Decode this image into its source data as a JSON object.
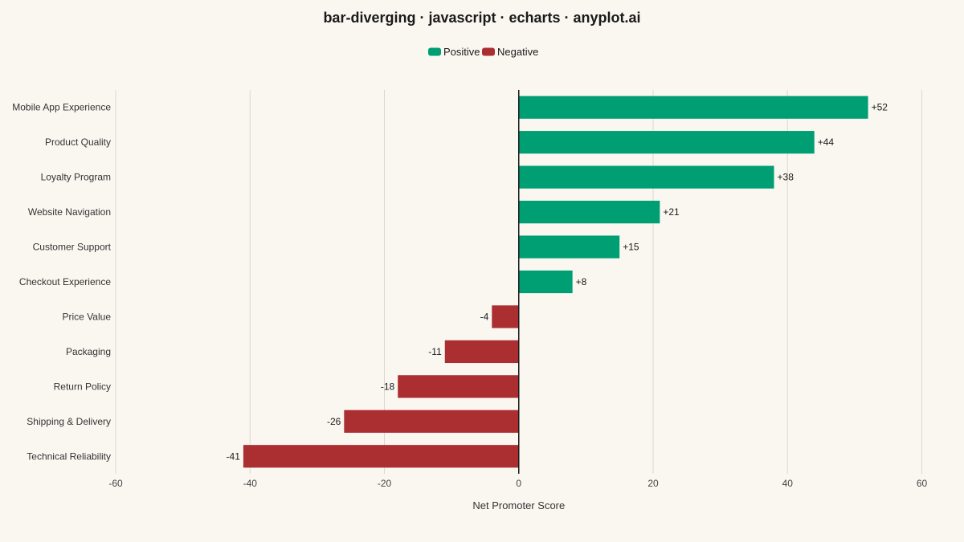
{
  "chart_data": {
    "type": "bar",
    "orientation": "horizontal",
    "title": "bar-diverging · javascript · echarts · anyplot.ai",
    "xlabel": "Net Promoter Score",
    "ylabel": "",
    "xlim": [
      -60,
      60
    ],
    "x_ticks": [
      "-60",
      "-40",
      "-20",
      "0",
      "20",
      "40",
      "60"
    ],
    "grid": true,
    "legend_position": "top-center",
    "legend": [
      {
        "name": "Positive",
        "color": "#009e73"
      },
      {
        "name": "Negative",
        "color": "#ab2e31"
      }
    ],
    "categories": [
      "Mobile App Experience",
      "Product Quality",
      "Loyalty Program",
      "Website Navigation",
      "Customer Support",
      "Checkout Experience",
      "Price Value",
      "Packaging",
      "Return Policy",
      "Shipping & Delivery",
      "Technical Reliability"
    ],
    "values": [
      52,
      44,
      38,
      21,
      15,
      8,
      -4,
      -11,
      -18,
      -26,
      -41
    ],
    "value_labels": [
      "+52",
      "+44",
      "+38",
      "+21",
      "+15",
      "+8",
      "-4",
      "-11",
      "-18",
      "-26",
      "-41"
    ]
  }
}
